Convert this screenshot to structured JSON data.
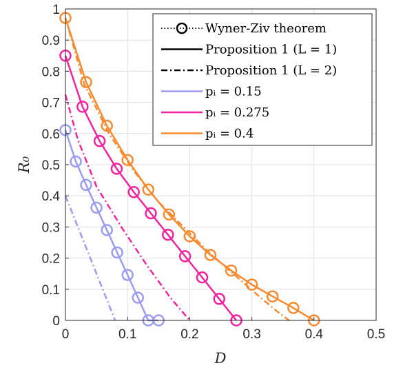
{
  "chart_data": {
    "type": "line",
    "xlabel": "D",
    "ylabel": "R₀",
    "xlim": [
      0,
      0.5
    ],
    "ylim": [
      0,
      1
    ],
    "x_ticks": [
      "0",
      "0.1",
      "0.2",
      "0.3",
      "0.4",
      "0.5"
    ],
    "y_ticks": [
      "0",
      "0.1",
      "0.2",
      "0.3",
      "0.4",
      "0.5",
      "0.6",
      "0.7",
      "0.8",
      "0.9",
      "1"
    ],
    "grid": true,
    "legend_position": "top-right",
    "legend": [
      {
        "label": "Wyner-Ziv theorem",
        "style": "dotted-circle"
      },
      {
        "label": "Proposition 1 (L = 1)",
        "style": "solid"
      },
      {
        "label": "Proposition 1 (L = 2)",
        "style": "dashdot"
      },
      {
        "label": "pᵢ = 0.15",
        "style": "color",
        "color": "#9b9bf0"
      },
      {
        "label": "pᵢ = 0.275",
        "style": "color",
        "color": "#f0249e"
      },
      {
        "label": "pᵢ = 0.4",
        "style": "color",
        "color": "#f7892e"
      }
    ],
    "series": [
      {
        "name": "pᵢ = 0.15",
        "color": "#9b9bf0",
        "wyner_ziv": {
          "x": [
            0,
            0.0167,
            0.0333,
            0.05,
            0.0667,
            0.0833,
            0.1,
            0.1167,
            0.1333,
            0.15
          ],
          "y": [
            0.611,
            0.51,
            0.435,
            0.362,
            0.29,
            0.218,
            0.146,
            0.073,
            0.0,
            0.0
          ]
        },
        "prop1_L1": {
          "x": [
            0,
            0.0167,
            0.0333,
            0.05,
            0.0667,
            0.0833,
            0.1,
            0.1167,
            0.1333,
            0.15
          ],
          "y": [
            0.611,
            0.51,
            0.435,
            0.362,
            0.29,
            0.218,
            0.146,
            0.073,
            0.0,
            0.0
          ]
        },
        "prop1_L2": {
          "x": [
            0,
            0.08
          ],
          "y": [
            0.4,
            0.0
          ]
        }
      },
      {
        "name": "pᵢ = 0.275",
        "color": "#f0249e",
        "wyner_ziv": {
          "x": [
            0,
            0.0275,
            0.055,
            0.0825,
            0.11,
            0.1375,
            0.165,
            0.1925,
            0.22,
            0.2475,
            0.275
          ],
          "y": [
            0.85,
            0.686,
            0.576,
            0.487,
            0.412,
            0.344,
            0.275,
            0.206,
            0.138,
            0.069,
            0.0
          ]
        },
        "prop1_L1": {
          "x": [
            0,
            0.0275,
            0.055,
            0.0825,
            0.11,
            0.1375,
            0.165,
            0.1925,
            0.22,
            0.2475,
            0.275
          ],
          "y": [
            0.85,
            0.686,
            0.576,
            0.487,
            0.412,
            0.344,
            0.275,
            0.206,
            0.138,
            0.069,
            0.0
          ]
        },
        "prop1_L2": {
          "x": [
            0,
            0.02,
            0.05,
            0.09,
            0.13,
            0.17,
            0.2
          ],
          "y": [
            0.725,
            0.58,
            0.43,
            0.3,
            0.18,
            0.07,
            0.0
          ]
        }
      },
      {
        "name": "pᵢ = 0.4",
        "color": "#f7892e",
        "wyner_ziv": {
          "x": [
            0,
            0.0333,
            0.0667,
            0.1,
            0.1333,
            0.1667,
            0.2,
            0.2333,
            0.2667,
            0.3,
            0.3333,
            0.3667,
            0.4
          ],
          "y": [
            0.971,
            0.765,
            0.625,
            0.515,
            0.42,
            0.34,
            0.27,
            0.21,
            0.16,
            0.115,
            0.077,
            0.04,
            0.0
          ]
        },
        "prop1_L1": {
          "x": [
            0,
            0.0333,
            0.0667,
            0.1,
            0.1333,
            0.1667,
            0.2,
            0.2333,
            0.2667,
            0.3,
            0.3333,
            0.3667,
            0.4
          ],
          "y": [
            0.971,
            0.765,
            0.625,
            0.515,
            0.42,
            0.34,
            0.27,
            0.21,
            0.16,
            0.115,
            0.077,
            0.04,
            0.0
          ]
        },
        "prop1_L2": {
          "x": [
            0,
            0.03,
            0.07,
            0.11,
            0.15,
            0.19,
            0.23,
            0.27,
            0.31,
            0.34,
            0.36
          ],
          "y": [
            0.971,
            0.76,
            0.6,
            0.48,
            0.38,
            0.3,
            0.22,
            0.15,
            0.08,
            0.03,
            0.0
          ]
        }
      }
    ]
  }
}
